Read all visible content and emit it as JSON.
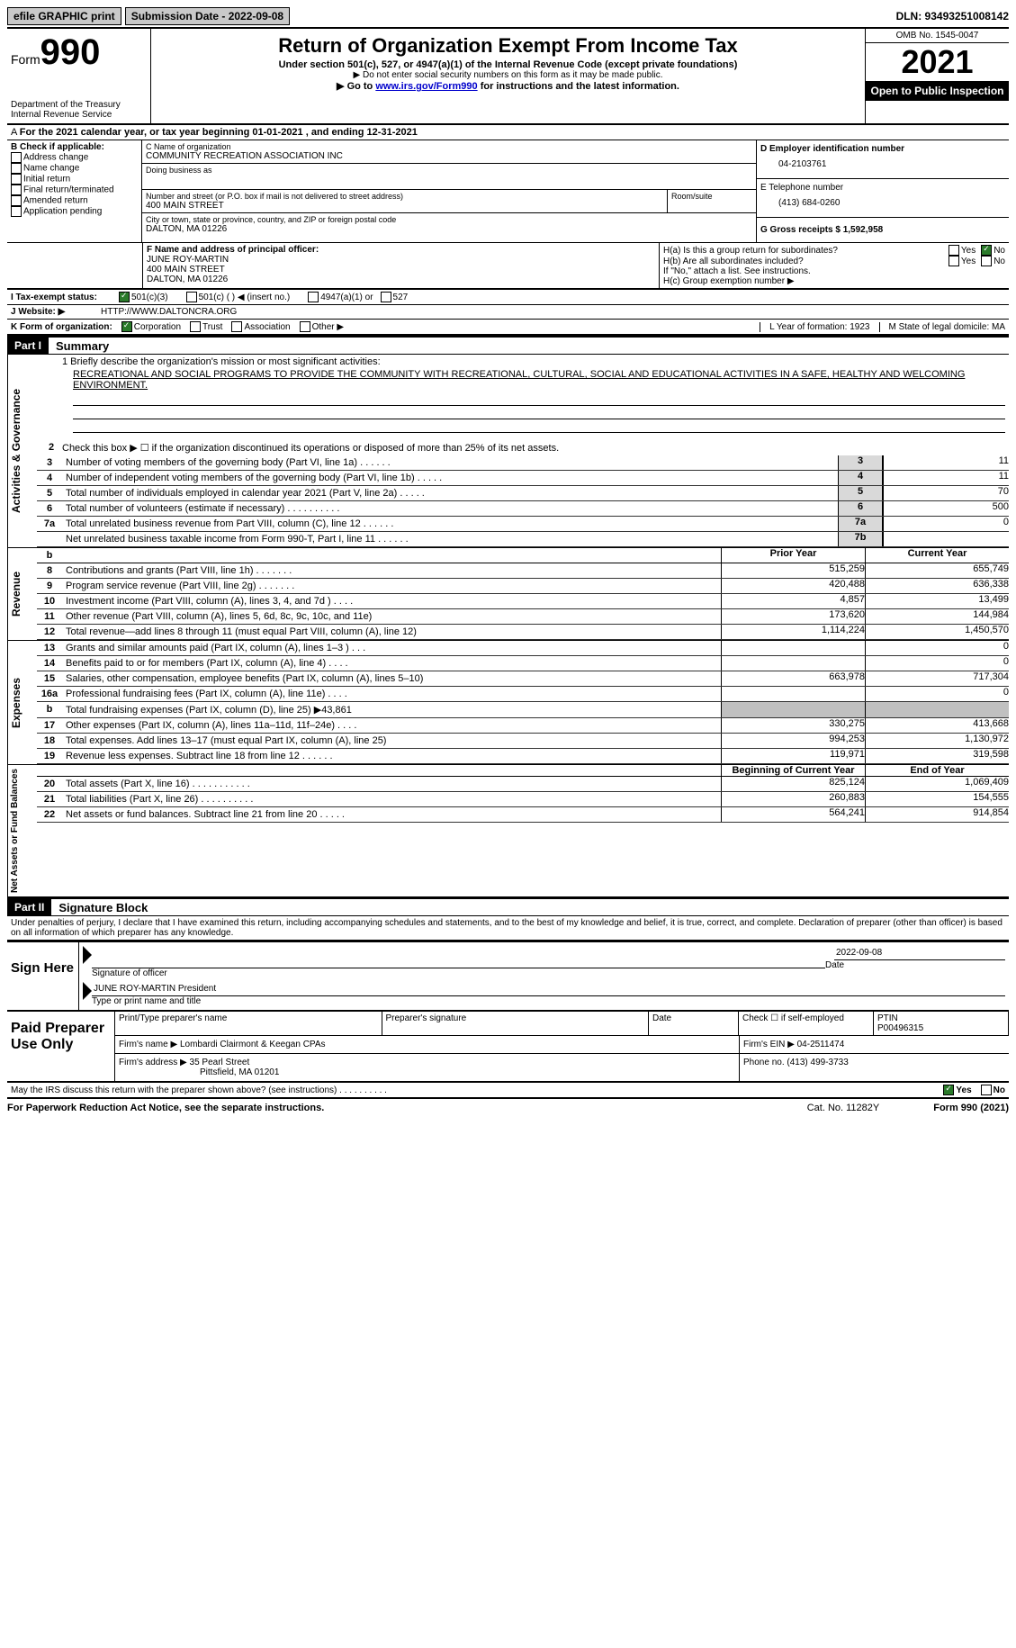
{
  "topbar": {
    "efile": "efile GRAPHIC print",
    "submission": "Submission Date - 2022-09-08",
    "dln": "DLN: 93493251008142"
  },
  "header": {
    "form_word": "Form",
    "form_num": "990",
    "dept": "Department of the Treasury Internal Revenue Service",
    "title": "Return of Organization Exempt From Income Tax",
    "sub1": "Under section 501(c), 527, or 4947(a)(1) of the Internal Revenue Code (except private foundations)",
    "sub2": "▶ Do not enter social security numbers on this form as it may be made public.",
    "sub3_pre": "▶ Go to ",
    "sub3_link": "www.irs.gov/Form990",
    "sub3_post": " for instructions and the latest information.",
    "omb": "OMB No. 1545-0047",
    "year": "2021",
    "open": "Open to Public Inspection"
  },
  "line_a": "For the 2021 calendar year, or tax year beginning 01-01-2021   , and ending 12-31-2021",
  "sec_b": {
    "label": "B Check if applicable:",
    "opts": [
      "Address change",
      "Name change",
      "Initial return",
      "Final return/terminated",
      "Amended return",
      "Application pending"
    ],
    "c_label": "C Name of organization",
    "c_name": "COMMUNITY RECREATION ASSOCIATION INC",
    "dba": "Doing business as",
    "street_label": "Number and street (or P.O. box if mail is not delivered to street address)",
    "room": "Room/suite",
    "street": "400 MAIN STREET",
    "city_label": "City or town, state or province, country, and ZIP or foreign postal code",
    "city": "DALTON, MA  01226",
    "d_label": "D Employer identification number",
    "d_val": "04-2103761",
    "e_label": "E Telephone number",
    "e_val": "(413) 684-0260",
    "g_label": "G Gross receipts $ 1,592,958"
  },
  "sec_f": {
    "label": "F  Name and address of principal officer:",
    "name": "JUNE ROY-MARTIN",
    "addr1": "400 MAIN STREET",
    "addr2": "DALTON, MA  01226",
    "ha": "H(a)  Is this a group return for subordinates?",
    "hb": "H(b)  Are all subordinates included?",
    "hb_note": "If \"No,\" attach a list. See instructions.",
    "hc": "H(c)  Group exemption number ▶",
    "yes": "Yes",
    "no": "No"
  },
  "line_i": {
    "label": "I    Tax-exempt status:",
    "o1": "501(c)(3)",
    "o2": "501(c) (  ) ◀ (insert no.)",
    "o3": "4947(a)(1) or",
    "o4": "527"
  },
  "line_j": {
    "label": "J    Website: ▶",
    "val": "HTTP://WWW.DALTONCRA.ORG"
  },
  "line_k": {
    "label": "K Form of organization:",
    "o1": "Corporation",
    "o2": "Trust",
    "o3": "Association",
    "o4": "Other ▶",
    "l": "L Year of formation: 1923",
    "m": "M State of legal domicile: MA"
  },
  "part1": {
    "num": "Part I",
    "title": "Summary"
  },
  "mission": {
    "l1": "1   Briefly describe the organization's mission or most significant activities:",
    "text": "RECREATIONAL AND SOCIAL PROGRAMS TO PROVIDE THE COMMUNITY WITH RECREATIONAL, CULTURAL, SOCIAL AND EDUCATIONAL ACTIVITIES IN A SAFE, HEALTHY AND WELCOMING ENVIRONMENT."
  },
  "gov": {
    "vlabel": "Activities & Governance",
    "l2": "Check this box ▶ ☐  if the organization discontinued its operations or disposed of more than 25% of its net assets.",
    "rows": [
      {
        "n": "3",
        "t": "Number of voting members of the governing body (Part VI, line 1a)   .    .    .    .    .    .",
        "ln": "3",
        "v": "11"
      },
      {
        "n": "4",
        "t": "Number of independent voting members of the governing body (Part VI, line 1b)   .    .    .    .    .",
        "ln": "4",
        "v": "11"
      },
      {
        "n": "5",
        "t": "Total number of individuals employed in calendar year 2021 (Part V, line 2a)   .    .    .    .    .",
        "ln": "5",
        "v": "70"
      },
      {
        "n": "6",
        "t": "Total number of volunteers (estimate if necessary)    .    .    .    .    .    .    .    .    .    .",
        "ln": "6",
        "v": "500"
      },
      {
        "n": "7a",
        "t": "Total unrelated business revenue from Part VIII, column (C), line 12   .    .    .    .    .    .",
        "ln": "7a",
        "v": "0"
      },
      {
        "n": "",
        "t": "Net unrelated business taxable income from Form 990-T, Part I, line 11   .    .    .    .    .    .",
        "ln": "7b",
        "v": ""
      }
    ]
  },
  "rev": {
    "vlabel": "Revenue",
    "hdr_b": "b",
    "col_prior": "Prior Year",
    "col_curr": "Current Year",
    "rows": [
      {
        "n": "8",
        "t": "Contributions and grants (Part VIII, line 1h)   .    .    .    .    .    .    .",
        "p": "515,259",
        "c": "655,749"
      },
      {
        "n": "9",
        "t": "Program service revenue (Part VIII, line 2g)   .    .    .    .    .    .    .",
        "p": "420,488",
        "c": "636,338"
      },
      {
        "n": "10",
        "t": "Investment income (Part VIII, column (A), lines 3, 4, and 7d )   .    .    .    .",
        "p": "4,857",
        "c": "13,499"
      },
      {
        "n": "11",
        "t": "Other revenue (Part VIII, column (A), lines 5, 6d, 8c, 9c, 10c, and 11e)",
        "p": "173,620",
        "c": "144,984"
      },
      {
        "n": "12",
        "t": "Total revenue—add lines 8 through 11 (must equal Part VIII, column (A), line 12)",
        "p": "1,114,224",
        "c": "1,450,570"
      }
    ]
  },
  "exp": {
    "vlabel": "Expenses",
    "rows": [
      {
        "n": "13",
        "t": "Grants and similar amounts paid (Part IX, column (A), lines 1–3 )   .    .    .",
        "p": "",
        "c": "0"
      },
      {
        "n": "14",
        "t": "Benefits paid to or for members (Part IX, column (A), line 4)   .    .    .    .",
        "p": "",
        "c": "0"
      },
      {
        "n": "15",
        "t": "Salaries, other compensation, employee benefits (Part IX, column (A), lines 5–10)",
        "p": "663,978",
        "c": "717,304"
      },
      {
        "n": "16a",
        "t": "Professional fundraising fees (Part IX, column (A), line 11e)   .    .    .    .",
        "p": "",
        "c": "0"
      },
      {
        "n": "b",
        "t": "Total fundraising expenses (Part IX, column (D), line 25) ▶43,861",
        "p": "GRAY",
        "c": "GRAY"
      },
      {
        "n": "17",
        "t": "Other expenses (Part IX, column (A), lines 11a–11d, 11f–24e)   .    .    .    .",
        "p": "330,275",
        "c": "413,668"
      },
      {
        "n": "18",
        "t": "Total expenses. Add lines 13–17 (must equal Part IX, column (A), line 25)",
        "p": "994,253",
        "c": "1,130,972"
      },
      {
        "n": "19",
        "t": "Revenue less expenses. Subtract line 18 from line 12   .    .    .    .    .    .",
        "p": "119,971",
        "c": "319,598"
      }
    ]
  },
  "net": {
    "vlabel": "Net Assets or Fund Balances",
    "col_begin": "Beginning of Current Year",
    "col_end": "End of Year",
    "rows": [
      {
        "n": "20",
        "t": "Total assets (Part X, line 16)   .    .    .    .    .    .    .    .    .    .    .",
        "p": "825,124",
        "c": "1,069,409"
      },
      {
        "n": "21",
        "t": "Total liabilities (Part X, line 26)   .    .    .    .    .    .    .    .    .    .",
        "p": "260,883",
        "c": "154,555"
      },
      {
        "n": "22",
        "t": "Net assets or fund balances. Subtract line 21 from line 20   .    .    .    .    .",
        "p": "564,241",
        "c": "914,854"
      }
    ]
  },
  "part2": {
    "num": "Part II",
    "title": "Signature Block"
  },
  "sig": {
    "decl": "Under penalties of perjury, I declare that I have examined this return, including accompanying schedules and statements, and to the best of my knowledge and belief, it is true, correct, and complete. Declaration of preparer (other than officer) is based on all information of which preparer has any knowledge.",
    "sign_here": "Sign Here",
    "sig_officer": "Signature of officer",
    "date": "Date",
    "date_val": "2022-09-08",
    "name": "JUNE ROY-MARTIN  President",
    "name_label": "Type or print name and title"
  },
  "prep": {
    "label": "Paid Preparer Use Only",
    "h1": "Print/Type preparer's name",
    "h2": "Preparer's signature",
    "h3": "Date",
    "h4": "Check ☐ if self-employed",
    "h5_label": "PTIN",
    "h5": "P00496315",
    "firm_label": "Firm's name    ▶",
    "firm": "Lombardi Clairmont & Keegan CPAs",
    "ein_label": "Firm's EIN ▶",
    "ein": "04-2511474",
    "addr_label": "Firm's address ▶",
    "addr1": "35 Pearl Street",
    "addr2": "Pittsfield, MA  01201",
    "phone_label": "Phone no.",
    "phone": "(413) 499-3733"
  },
  "discuss": {
    "text": "May the IRS discuss this return with the preparer shown above? (see instructions)   .    .    .    .    .    .    .    .    .    .",
    "yes": "Yes",
    "no": "No"
  },
  "footer": {
    "left": "For Paperwork Reduction Act Notice, see the separate instructions.",
    "mid": "Cat. No. 11282Y",
    "right": "Form 990 (2021)"
  }
}
